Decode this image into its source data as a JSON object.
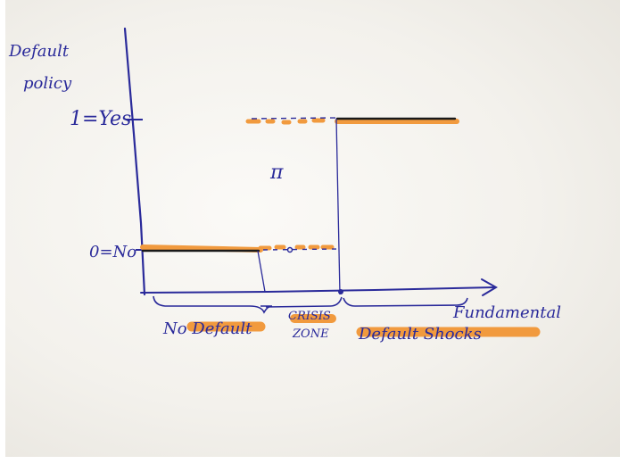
{
  "diagram": {
    "y_axis_label_line1": "Default",
    "y_axis_label_line2": "policy",
    "y_tick_yes": "1=Yes",
    "y_tick_no": "0=No",
    "x_axis_label": "Fundamental",
    "middle_symbol": "π",
    "region_no_default": "No Default",
    "region_crisis_line1": "CRISIS",
    "region_crisis_line2": "ZONE",
    "region_default": "Default Shocks",
    "colors": {
      "ink": "#2a2a9a",
      "highlighter": "#f19a3e",
      "marker_black": "#1a1a1a",
      "paper": "#f5f3ee"
    }
  }
}
